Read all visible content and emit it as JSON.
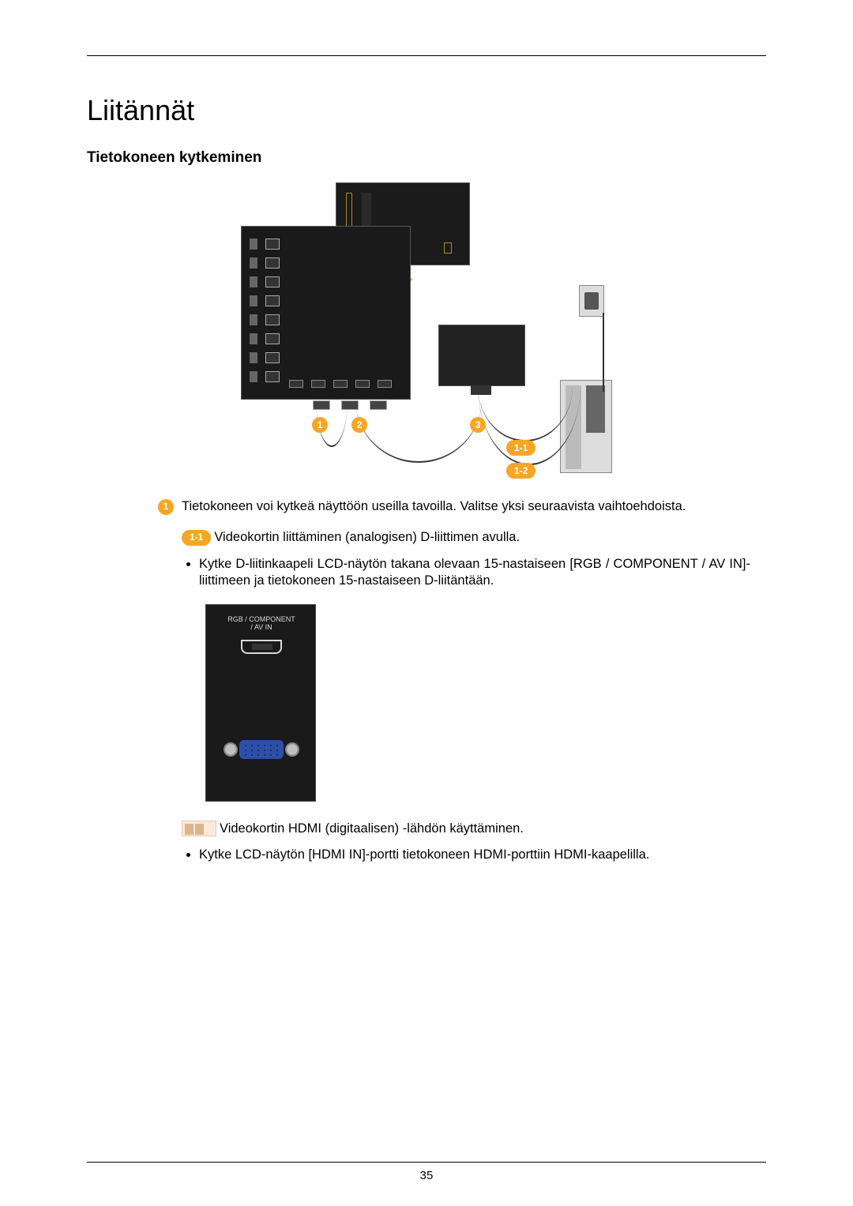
{
  "page_number": "35",
  "heading": "Liitännät",
  "subheading": "Tietokoneen kytkeminen",
  "diagram": {
    "badges": {
      "c1": "1",
      "c2": "2",
      "c3": "3",
      "p1": "1-1",
      "p2": "1-2"
    },
    "colors": {
      "accent": "#f6a623",
      "panel_bg": "#1a1a1a",
      "outline": "#555555",
      "cable": "#333333",
      "tower_bg": "#dddddd"
    }
  },
  "step1": {
    "num": "1",
    "text": "Tietokoneen voi kytkeä näyttöön useilla tavoilla. Valitse yksi seuraavista vaihtoehdoista."
  },
  "sub11": {
    "pill": "1-1",
    "text": "Videokortin liittäminen (analogisen) D-liittimen avulla.",
    "bullet": "Kytke D-liitinkaapeli LCD-näytön takana olevaan 15-nastaiseen [RGB / COMPONENT / AV IN]-liittimeen ja tietokoneen 15-nastaiseen D-liitäntään."
  },
  "port_figure": {
    "label_line1": "RGB /  COMPONENT",
    "label_line2": "/ AV IN",
    "vga_color": "#2e4fa8",
    "bg": "#1a1a1a"
  },
  "sub12": {
    "text": "Videokortin HDMI (digitaalisen) -lähdön käyttäminen.",
    "bullet": "Kytke LCD-näytön [HDMI IN]-portti tietokoneen HDMI-porttiin HDMI-kaapelilla."
  }
}
